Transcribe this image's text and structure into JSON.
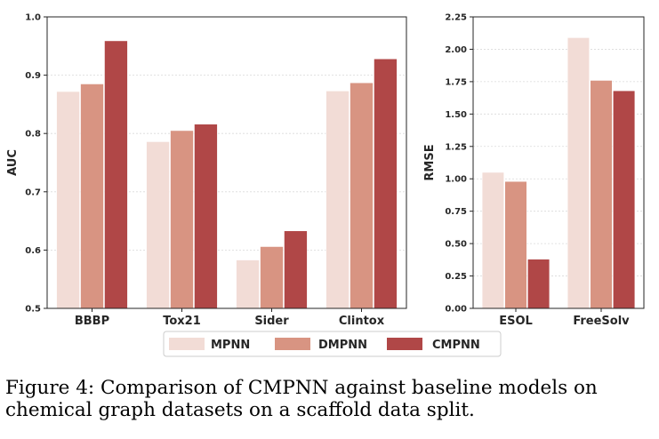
{
  "legend": {
    "labels": [
      "MPNN",
      "DMPNN",
      "CMPNN"
    ],
    "colors": [
      "#f2dcd6",
      "#d89482",
      "#b04747"
    ]
  },
  "caption": "Figure 4: Comparison of CMPNN against baseline models on chemical graph datasets on a scaffold data split.",
  "chart_data": [
    {
      "type": "bar",
      "title": "",
      "xlabel": "",
      "ylabel": "AUC",
      "ylim": [
        0.5,
        1.0
      ],
      "yticks": [
        0.5,
        0.6,
        0.7,
        0.8,
        0.9,
        1.0
      ],
      "ytick_labels": [
        "0.5",
        "0.6",
        "0.7",
        "0.8",
        "0.9",
        "1.0"
      ],
      "grid": true,
      "categories": [
        "BBBP",
        "Tox21",
        "Sider",
        "Clintox"
      ],
      "series": [
        {
          "name": "MPNN",
          "values": [
            0.872,
            0.786,
            0.583,
            0.873
          ]
        },
        {
          "name": "DMPNN",
          "values": [
            0.885,
            0.805,
            0.606,
            0.887
          ]
        },
        {
          "name": "CMPNN",
          "values": [
            0.959,
            0.816,
            0.633,
            0.928
          ]
        }
      ]
    },
    {
      "type": "bar",
      "title": "",
      "xlabel": "",
      "ylabel": "RMSE",
      "ylim": [
        0.0,
        2.25
      ],
      "yticks": [
        0.0,
        0.25,
        0.5,
        0.75,
        1.0,
        1.25,
        1.5,
        1.75,
        2.0,
        2.25
      ],
      "ytick_labels": [
        "0.00",
        "0.25",
        "0.50",
        "0.75",
        "1.00",
        "1.25",
        "1.50",
        "1.75",
        "2.00",
        "2.25"
      ],
      "grid": true,
      "categories": [
        "ESOL",
        "FreeSolv"
      ],
      "series": [
        {
          "name": "MPNN",
          "values": [
            1.05,
            2.09
          ]
        },
        {
          "name": "DMPNN",
          "values": [
            0.98,
            1.76
          ]
        },
        {
          "name": "CMPNN",
          "values": [
            0.38,
            1.68
          ]
        }
      ]
    }
  ]
}
